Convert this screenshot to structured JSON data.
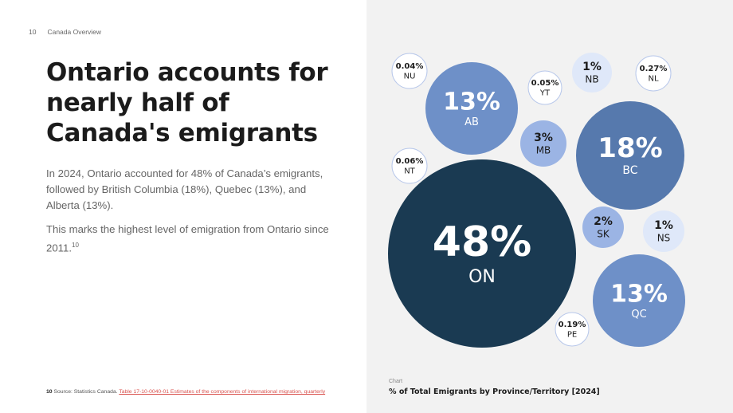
{
  "header": {
    "page_number": "10",
    "section": "Canada Overview"
  },
  "headline": {
    "line1": "Ontario accounts for",
    "line2": "nearly half of",
    "line3": "Canada's emigrants"
  },
  "body": {
    "para1": "In 2024, Ontario accounted for 48% of Canada’s emigrants, followed by British Columbia (18%), Quebec (13%), and Alberta (13%).",
    "para2": "This marks the highest level of emigration from Ontario since 2011.",
    "para2_footnote_ref": "10"
  },
  "footnote": {
    "number": "10",
    "prefix": "Source: Statistics Canada.",
    "link_text": "Table 17-10-0040-01  Estimates of the components of international migration, quarterly"
  },
  "chart_label": "Chart",
  "chart_title": "% of Total Emigrants by Province/Territory [2024]",
  "colors": {
    "darkest": "#1a3a52",
    "dark": "#5679ad",
    "mid": "#6e90c8",
    "light": "#9bb4e4",
    "pale": "#dfe8f9",
    "white": "#ffffff",
    "stroke": "#b7c7ea"
  },
  "chart_data": {
    "type": "bubble",
    "title": "% of Total Emigrants by Province/Territory [2024]",
    "bubbles": [
      {
        "label": "ON",
        "value_text": "48%",
        "value": 48
      },
      {
        "label": "BC",
        "value_text": "18%",
        "value": 18
      },
      {
        "label": "QC",
        "value_text": "13%",
        "value": 13
      },
      {
        "label": "AB",
        "value_text": "13%",
        "value": 13
      },
      {
        "label": "MB",
        "value_text": "3%",
        "value": 3
      },
      {
        "label": "SK",
        "value_text": "2%",
        "value": 2
      },
      {
        "label": "NB",
        "value_text": "1%",
        "value": 1
      },
      {
        "label": "NS",
        "value_text": "1%",
        "value": 1
      },
      {
        "label": "NL",
        "value_text": "0.27%",
        "value": 0.27
      },
      {
        "label": "PE",
        "value_text": "0.19%",
        "value": 0.19
      },
      {
        "label": "NT",
        "value_text": "0.06%",
        "value": 0.06
      },
      {
        "label": "YT",
        "value_text": "0.05%",
        "value": 0.05
      },
      {
        "label": "NU",
        "value_text": "0.04%",
        "value": 0.04
      }
    ]
  }
}
